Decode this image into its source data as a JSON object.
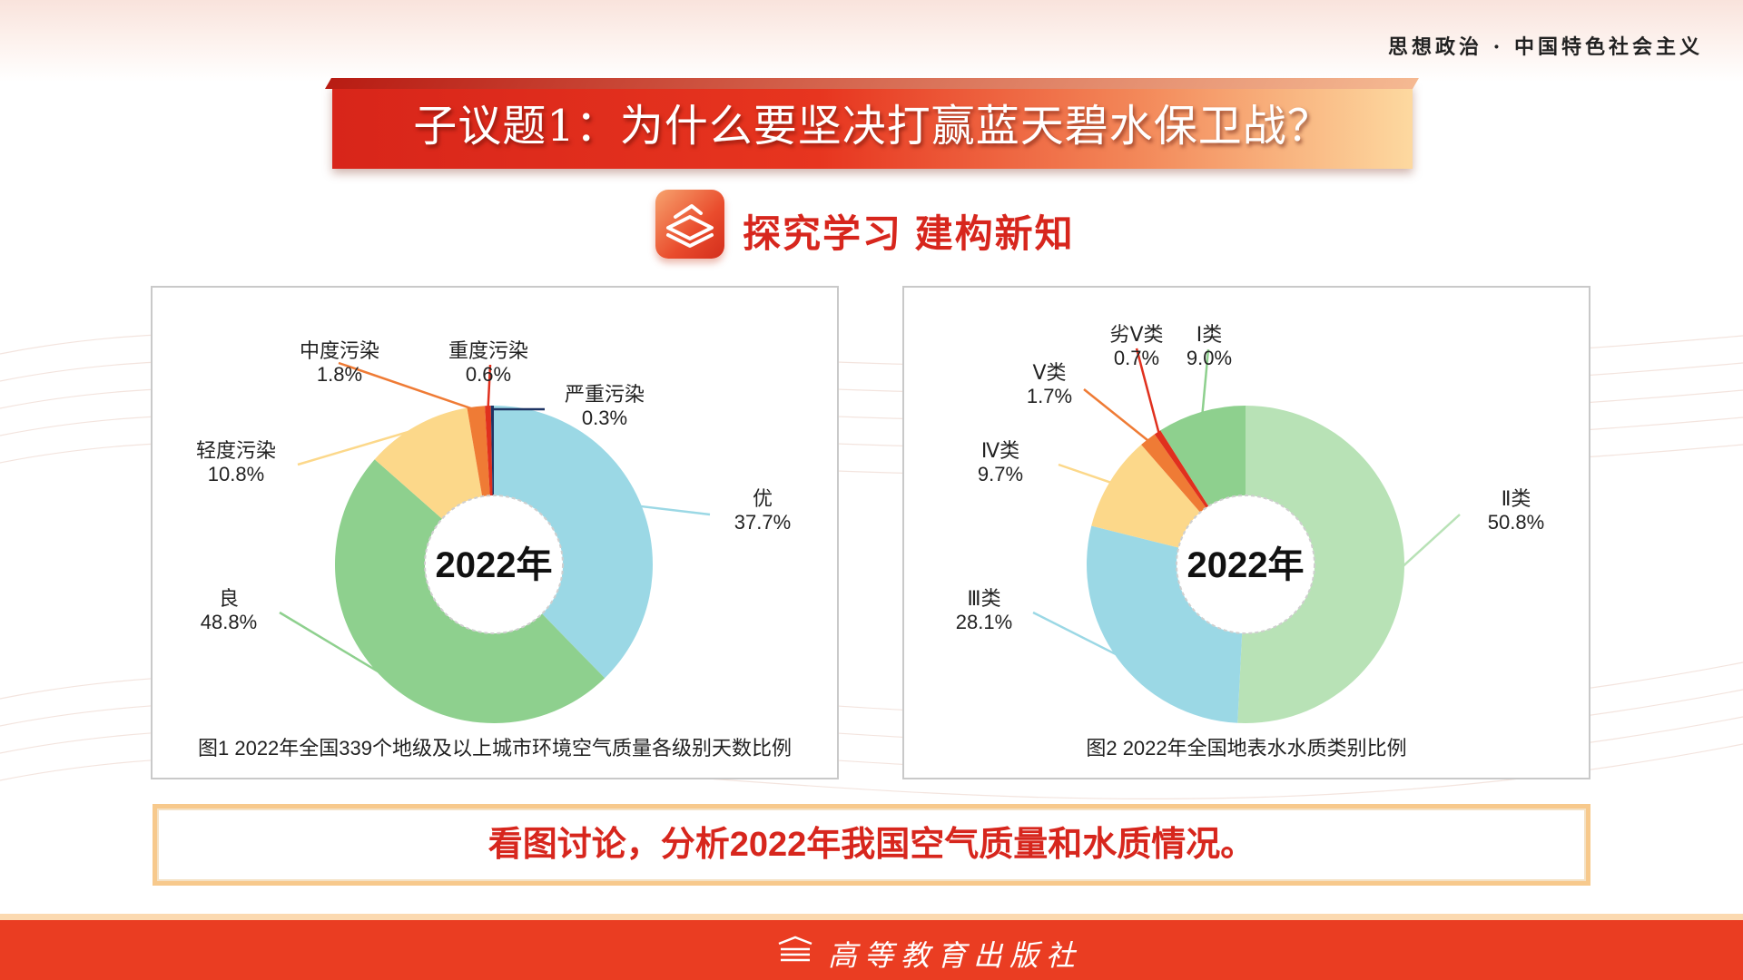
{
  "header": {
    "subject": "思想政治 · 中国特色社会主义"
  },
  "title_banner": {
    "title": "子议题1：为什么要坚决打赢蓝天碧水保卫战？"
  },
  "section": {
    "icon": "book-stack-icon",
    "title": "探究学习  建构新知"
  },
  "question": {
    "text": "看图讨论，分析2022年我国空气质量和水质情况。"
  },
  "footer": {
    "publisher": "高等教育出版社",
    "logo": "publisher-logo-icon"
  },
  "chart_data": [
    {
      "type": "pie",
      "variant": "donut",
      "center_label": "2022年",
      "caption": "图1 2022年全国339个地级及以上城市环境空气质量各级别天数比例",
      "slices": [
        {
          "label": "优",
          "value": 37.7,
          "value_text": "37.7%",
          "color": "#9bd8e5"
        },
        {
          "label": "良",
          "value": 48.8,
          "value_text": "48.8%",
          "color": "#8ed08e"
        },
        {
          "label": "轻度污染",
          "value": 10.8,
          "value_text": "10.8%",
          "color": "#fcd88a"
        },
        {
          "label": "中度污染",
          "value": 1.8,
          "value_text": "1.8%",
          "color": "#ef7b35"
        },
        {
          "label": "重度污染",
          "value": 0.6,
          "value_text": "0.6%",
          "color": "#e0301e"
        },
        {
          "label": "严重污染",
          "value": 0.3,
          "value_text": "0.3%",
          "color": "#1f3564"
        }
      ]
    },
    {
      "type": "pie",
      "variant": "donut",
      "center_label": "2022年",
      "caption": "图2 2022年全国地表水水质类别比例",
      "slices": [
        {
          "label": "Ⅱ类",
          "value": 50.8,
          "value_text": "50.8%",
          "color": "#b8e2b6"
        },
        {
          "label": "Ⅲ类",
          "value": 28.1,
          "value_text": "28.1%",
          "color": "#9bd8e5"
        },
        {
          "label": "Ⅳ类",
          "value": 9.7,
          "value_text": "9.7%",
          "color": "#fcd88a"
        },
        {
          "label": "Ⅴ类",
          "value": 1.7,
          "value_text": "1.7%",
          "color": "#ef7b35"
        },
        {
          "label": "劣Ⅴ类",
          "value": 0.7,
          "value_text": "0.7%",
          "color": "#e0301e"
        },
        {
          "label": "Ⅰ类",
          "value": 9.0,
          "value_text": "9.0%",
          "color": "#8ed08e"
        }
      ]
    }
  ]
}
